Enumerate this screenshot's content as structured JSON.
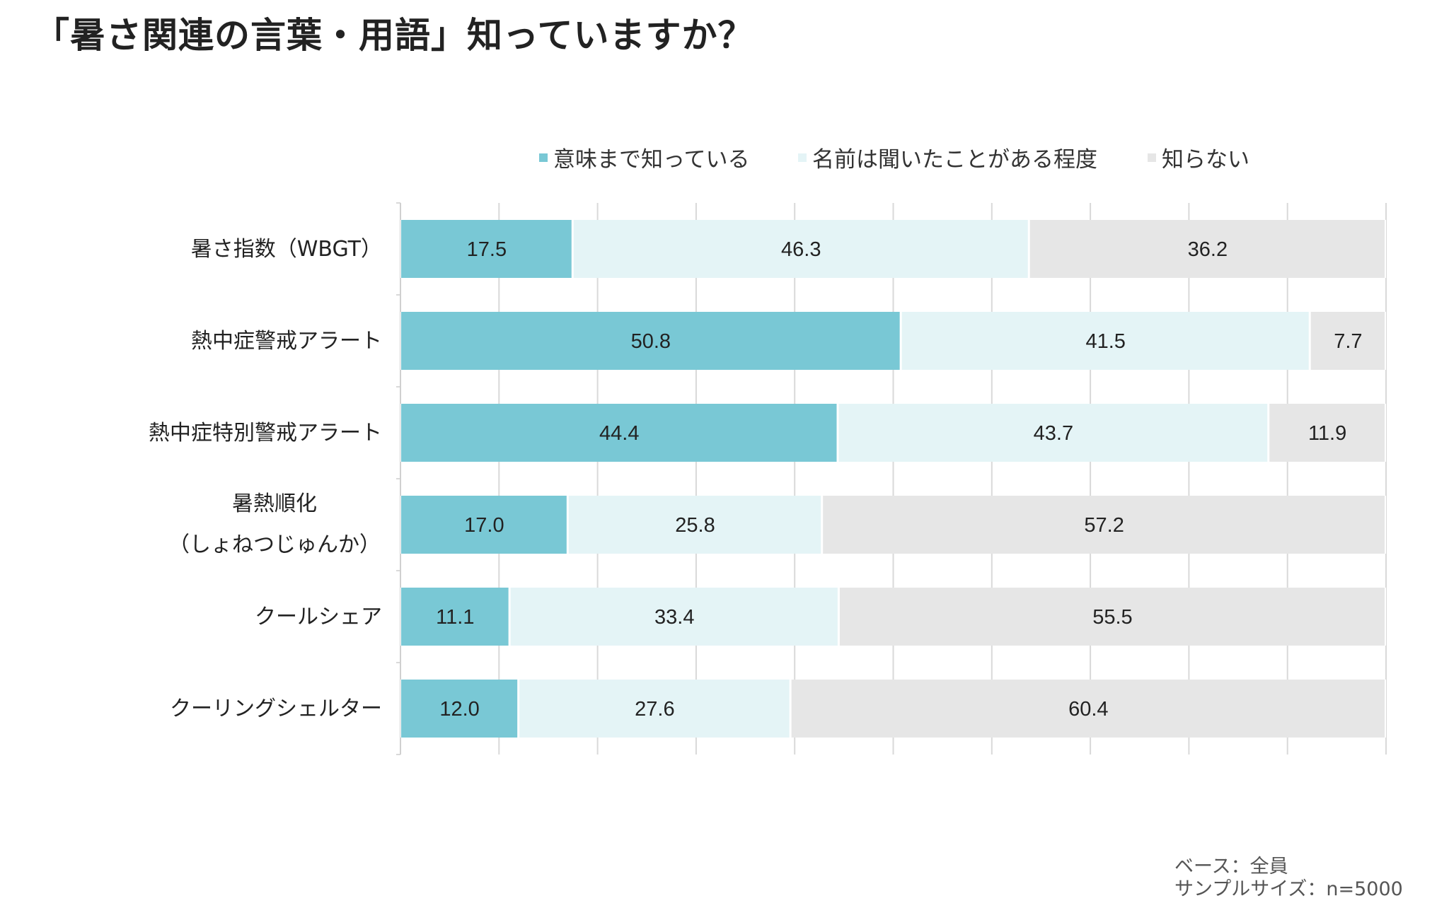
{
  "title": "「暑さ関連の言葉・用語」知っていますか？",
  "footnote": {
    "base": "ベース：全員",
    "sample": "サンプルサイズ：n=5000"
  },
  "chart_data": {
    "type": "bar",
    "orientation": "horizontal",
    "stacked": true,
    "xlim": [
      0,
      100
    ],
    "grid": true,
    "legend_position": "top",
    "categories": [
      "暑さ指数（WBGT）",
      "熱中症警戒アラート",
      "熱中症特別警戒アラート",
      "暑熱順化\n（しょねつじゅんか）",
      "クールシェア",
      "クーリングシェルター"
    ],
    "series": [
      {
        "name": "意味まで知っている",
        "color": "#79c8d5",
        "values": [
          17.5,
          50.8,
          44.4,
          17.0,
          11.1,
          12.0
        ]
      },
      {
        "name": "名前は聞いたことがある程度",
        "color": "#e4f4f6",
        "values": [
          46.3,
          41.5,
          43.7,
          25.8,
          33.4,
          27.6
        ]
      },
      {
        "name": "知らない",
        "color": "#e6e6e6",
        "values": [
          36.2,
          7.7,
          11.9,
          57.2,
          55.5,
          60.4
        ]
      }
    ]
  }
}
